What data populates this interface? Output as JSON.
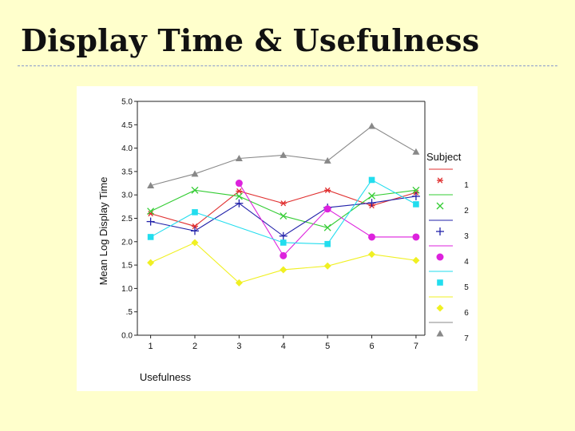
{
  "slide": {
    "title": "Display Time & Usefulness"
  },
  "chart_data": {
    "type": "line",
    "title": "",
    "xlabel": "Usefulness",
    "ylabel": "Mean Log Display Time",
    "x": [
      1,
      2,
      3,
      4,
      5,
      6,
      7
    ],
    "xlim": [
      0.7,
      7.2
    ],
    "ylim": [
      0,
      5
    ],
    "yticks": [
      0,
      0.5,
      1,
      1.5,
      2,
      2.5,
      3,
      3.5,
      4,
      4.5,
      5
    ],
    "ytick_labels": [
      "0.0",
      ".5",
      "1.0",
      "1.5",
      "2.0",
      "2.5",
      "3.0",
      "3.5",
      "4.0",
      "4.5",
      "5.0"
    ],
    "xtick_labels": [
      "1",
      "2",
      "3",
      "4",
      "5",
      "6",
      "7"
    ],
    "grid": false,
    "legend_title": "Subject",
    "legend_position": "right",
    "series": [
      {
        "name": "1",
        "color": "#e03030",
        "marker": "asterisk",
        "values": [
          2.6,
          2.33,
          3.08,
          2.82,
          3.1,
          2.77,
          3.05
        ]
      },
      {
        "name": "2",
        "color": "#33cc33",
        "marker": "x",
        "values": [
          2.65,
          3.1,
          2.97,
          2.55,
          2.3,
          2.98,
          3.1
        ]
      },
      {
        "name": "3",
        "color": "#2222aa",
        "marker": "plus",
        "values": [
          2.43,
          2.23,
          2.82,
          2.12,
          2.73,
          2.83,
          2.97
        ]
      },
      {
        "name": "4",
        "color": "#dd22dd",
        "marker": "circle",
        "values": [
          null,
          null,
          3.25,
          1.7,
          2.7,
          2.1,
          2.1
        ]
      },
      {
        "name": "5",
        "color": "#22ddee",
        "marker": "square",
        "values": [
          2.1,
          2.63,
          null,
          1.98,
          1.95,
          3.32,
          2.8
        ]
      },
      {
        "name": "6",
        "color": "#f0f022",
        "marker": "diamond",
        "values": [
          1.55,
          1.98,
          1.12,
          1.4,
          1.48,
          1.73,
          1.6
        ]
      },
      {
        "name": "7",
        "color": "#888888",
        "marker": "triangle",
        "values": [
          3.2,
          3.45,
          3.78,
          3.85,
          3.73,
          4.47,
          3.92
        ]
      }
    ]
  }
}
